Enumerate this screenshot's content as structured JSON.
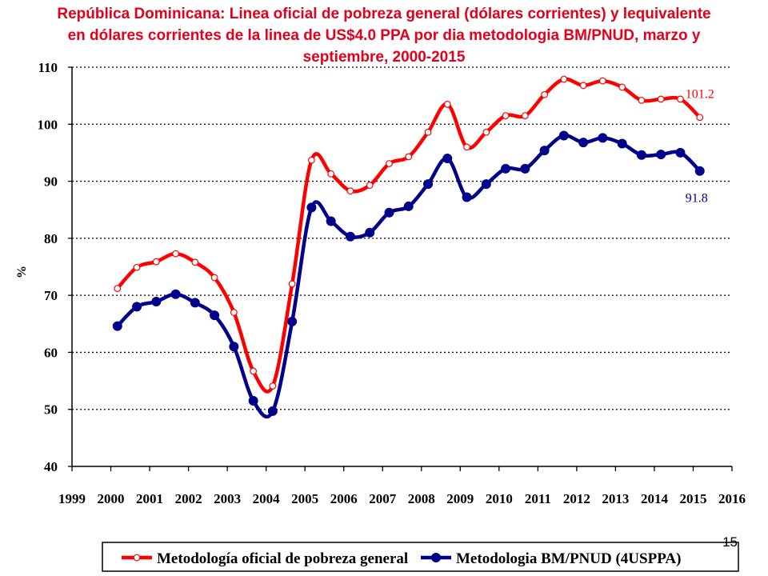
{
  "slide_number": "15",
  "chart_data": {
    "type": "line",
    "title_lines": [
      "República Dominicana: Linea oficial de pobreza general (dólares corrientes) y lequivalente",
      "en dólares corrientes de la linea de US$4.0 PPA por dia metodologia BM/PNUD, marzo y",
      "septiembre, 2000-2015"
    ],
    "ylabel": "%",
    "xlabel": "",
    "xlim": [
      1999,
      2016
    ],
    "ylim": [
      40,
      110
    ],
    "x_ticks": [
      "1999",
      "2000",
      "2001",
      "2002",
      "2003",
      "2004",
      "2005",
      "2006",
      "2007",
      "2008",
      "2009",
      "2010",
      "2011",
      "2012",
      "2013",
      "2014",
      "2015",
      "2016"
    ],
    "y_ticks": [
      "40",
      "50",
      "60",
      "70",
      "80",
      "90",
      "100",
      "110"
    ],
    "grid": "horizontal-dotted",
    "legend_position": "bottom",
    "x": [
      2000.17,
      2000.67,
      2001.17,
      2001.67,
      2002.17,
      2002.67,
      2003.17,
      2003.67,
      2004.17,
      2004.67,
      2005.17,
      2005.67,
      2006.17,
      2006.67,
      2007.17,
      2007.67,
      2008.17,
      2008.67,
      2009.17,
      2009.67,
      2010.17,
      2010.67,
      2011.17,
      2011.67,
      2012.17,
      2012.67,
      2013.17,
      2013.67,
      2014.17,
      2014.67,
      2015.17
    ],
    "series": [
      {
        "name": "Metodología oficial de pobreza general",
        "color": "#ff0000",
        "marker": "open-circle",
        "values": [
          71.2,
          74.9,
          75.9,
          77.3,
          75.8,
          73.1,
          67.0,
          56.7,
          54.1,
          72.0,
          93.7,
          91.3,
          88.3,
          89.3,
          93.1,
          94.3,
          98.6,
          103.5,
          96.0,
          98.6,
          101.5,
          101.5,
          105.2,
          107.9,
          106.8,
          107.6,
          106.5,
          104.2,
          104.4,
          104.4,
          101.2
        ]
      },
      {
        "name": "Metodologia BM/PNUD (4USPPA)",
        "color": "#00008b",
        "marker": "filled-circle",
        "values": [
          64.6,
          68.0,
          68.9,
          70.2,
          68.7,
          66.5,
          61.0,
          51.5,
          49.7,
          65.4,
          85.4,
          83.0,
          80.3,
          81.0,
          84.5,
          85.6,
          89.5,
          94.0,
          87.2,
          89.5,
          92.2,
          92.2,
          95.4,
          98.0,
          96.8,
          97.6,
          96.6,
          94.6,
          94.7,
          95.0,
          91.8
        ]
      }
    ],
    "annotations": [
      "101.2",
      "91.8"
    ]
  }
}
